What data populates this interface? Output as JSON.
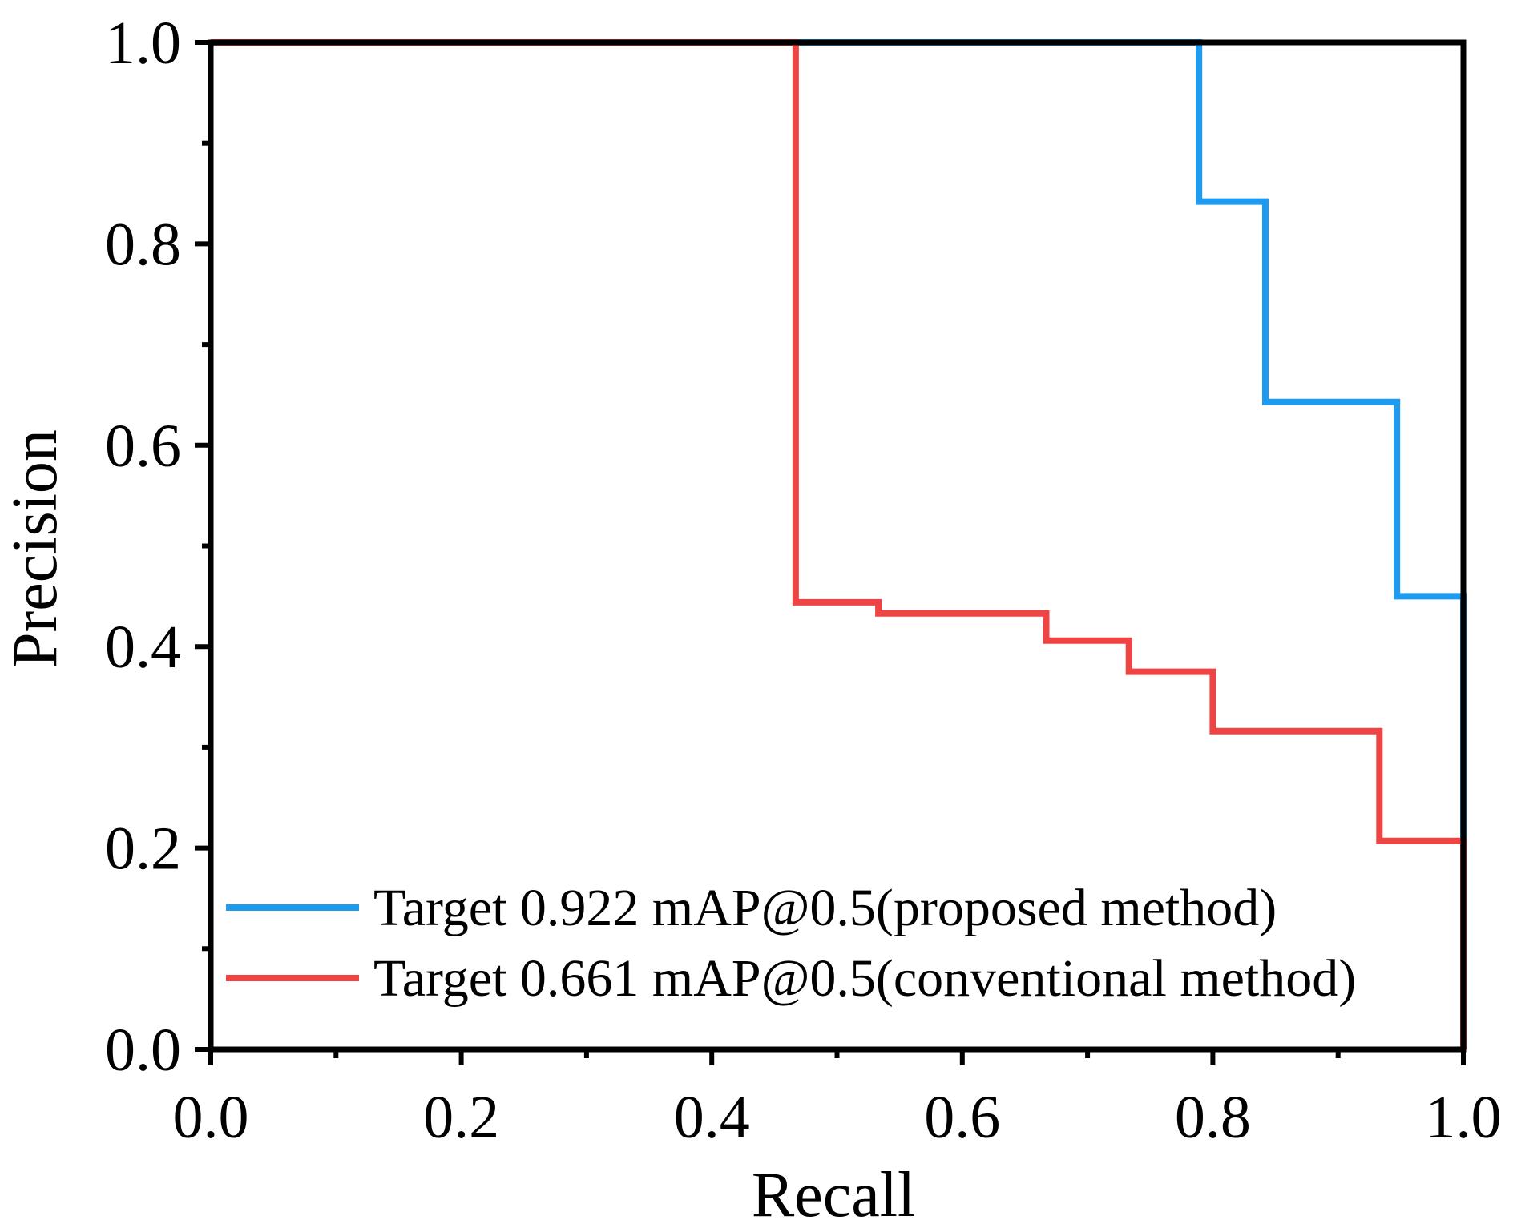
{
  "chart_data": {
    "type": "line",
    "title": "",
    "xlabel": "Recall",
    "ylabel": "Precision",
    "xlim": [
      0.0,
      1.0
    ],
    "ylim": [
      0.0,
      1.0
    ],
    "grid": false,
    "legend_position": "bottom-left",
    "x_ticks": [
      "0.0",
      "0.2",
      "0.4",
      "0.6",
      "0.8",
      "1.0"
    ],
    "y_ticks": [
      "0.0",
      "0.2",
      "0.4",
      "0.6",
      "0.8",
      "1.0"
    ],
    "series": [
      {
        "name": "Target 0.922 mAP@0.5(proposed method)",
        "color": "#1E9BEF",
        "x": [
          0.0,
          0.789,
          0.789,
          0.842,
          0.842,
          0.947,
          0.947,
          1.0,
          1.0
        ],
        "y": [
          1.0,
          1.0,
          0.842,
          0.842,
          0.643,
          0.643,
          0.45,
          0.45,
          0.0
        ]
      },
      {
        "name": "Target 0.661 mAP@0.5(conventional method)",
        "color": "#EE4444",
        "x": [
          0.0,
          0.467,
          0.467,
          0.533,
          0.533,
          0.667,
          0.667,
          0.733,
          0.733,
          0.8,
          0.8,
          0.933,
          0.933,
          1.0,
          1.0
        ],
        "y": [
          1.0,
          1.0,
          0.444,
          0.444,
          0.433,
          0.433,
          0.406,
          0.406,
          0.375,
          0.375,
          0.316,
          0.316,
          0.207,
          0.207,
          0.0
        ]
      }
    ]
  }
}
